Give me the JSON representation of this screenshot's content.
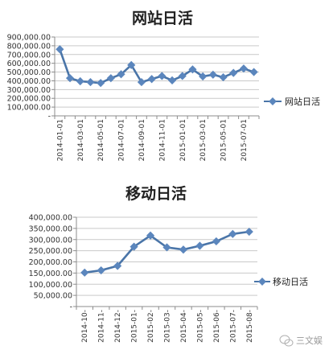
{
  "chart_data": [
    {
      "type": "line",
      "title": "网站日活",
      "x": [
        "2014-01-01",
        "2014-02-01",
        "2014-03-01",
        "2014-04-01",
        "2014-05-01",
        "2014-06-01",
        "2014-07-01",
        "2014-08-01",
        "2014-09-01",
        "2014-10-01",
        "2014-11-01",
        "2014-12-01",
        "2015-01-01",
        "2015-02-01",
        "2015-03-01",
        "2015-04-01",
        "2015-05-01",
        "2015-06-01",
        "2015-07-01",
        "2015-08-01"
      ],
      "x_tick_labels": [
        "2014-01-01",
        "2014-03-01",
        "2014-05-01",
        "2014-07-01",
        "2014-09-01",
        "2014-11-01",
        "2015-01-01",
        "2015-03-01",
        "2015-05-01",
        "2015-07-01"
      ],
      "series": [
        {
          "name": "网站日活",
          "values": [
            760000,
            430000,
            395000,
            385000,
            375000,
            430000,
            475000,
            580000,
            385000,
            420000,
            455000,
            405000,
            455000,
            530000,
            450000,
            470000,
            440000,
            490000,
            540000,
            500000
          ]
        }
      ],
      "ylim": [
        0,
        900000
      ],
      "y_ticks": [
        0,
        100000,
        200000,
        300000,
        400000,
        500000,
        600000,
        700000,
        800000,
        900000
      ],
      "y_tick_labels": [
        "-",
        "100,000.00",
        "200,000.00",
        "300,000.00",
        "400,000.00",
        "500,000.00",
        "600,000.00",
        "700,000.00",
        "800,000.00",
        "900,000.00"
      ],
      "xlabel": "",
      "ylabel": "",
      "legend": "right",
      "grid": true
    },
    {
      "type": "line",
      "title": "移动日活",
      "x": [
        "2014-10-",
        "2014-11-",
        "2014-12-",
        "2015-01-",
        "2015-02-",
        "2015-03-",
        "2015-04-",
        "2015-05-",
        "2015-06-",
        "2015-07-",
        "2015-08-"
      ],
      "x_tick_labels": [
        "2014-10-",
        "2014-11-",
        "2014-12-",
        "2015-01-",
        "2015-02-",
        "2015-03-",
        "2015-04-",
        "2015-05-",
        "2015-06-",
        "2015-07-",
        "2015-08-"
      ],
      "series": [
        {
          "name": "移动日活",
          "values": [
            152000,
            162000,
            182000,
            268000,
            318000,
            265000,
            255000,
            272000,
            292000,
            325000,
            335000
          ]
        }
      ],
      "ylim": [
        0,
        400000
      ],
      "y_ticks": [
        0,
        50000,
        100000,
        150000,
        200000,
        250000,
        300000,
        350000,
        400000
      ],
      "y_tick_labels": [
        "-",
        "50,000.00",
        "100,000.00",
        "150,000.00",
        "200,000.00",
        "250,000.00",
        "300,000.00",
        "350,000.00",
        "400,000.00"
      ],
      "xlabel": "",
      "ylabel": "",
      "legend": "right",
      "grid": true
    }
  ],
  "colors": {
    "line": "#4a75a8",
    "marker": "#5b86bd",
    "grid": "#c9c9c9",
    "axis": "#8c8c8c",
    "background": "#ffffff"
  },
  "watermark": {
    "text": "三文娱",
    "icon": "wechat-icon"
  }
}
